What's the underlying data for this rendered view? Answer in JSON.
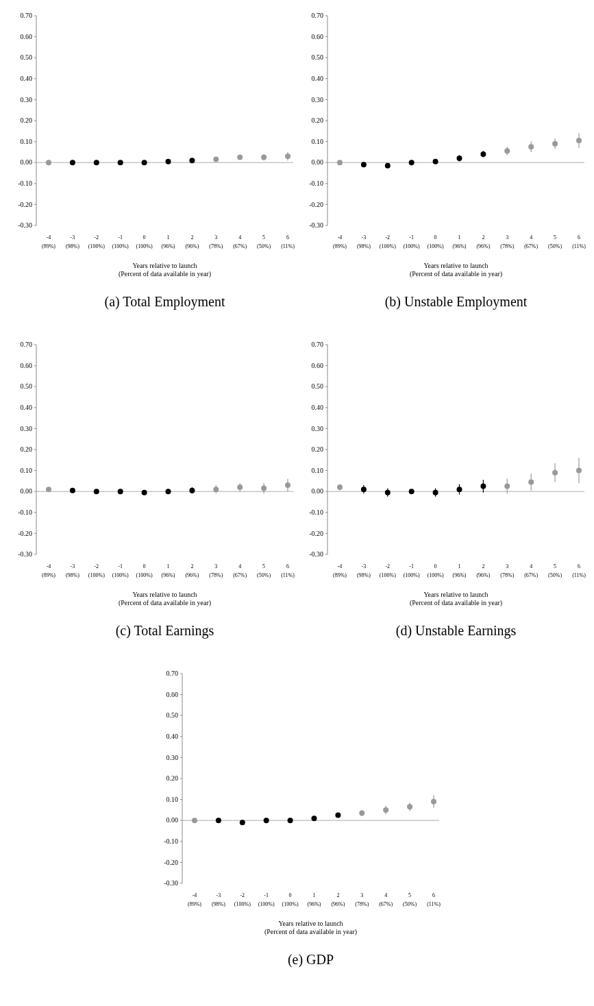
{
  "chart_data": [
    {
      "type": "scatter",
      "title": "(a) Total Employment",
      "xlabel": "Years relative to launch\n(Percent of data available in year)",
      "categories": [
        "-4 (89%)",
        "-3 (98%)",
        "-2 (100%)",
        "-1 (100%)",
        "0 (100%)",
        "1 (96%)",
        "2 (96%)",
        "3 (78%)",
        "4 (67%)",
        "5 (50%)",
        "6 (11%)"
      ],
      "values": [
        0.0,
        0.0,
        0.0,
        0.0,
        0.0,
        0.005,
        0.01,
        0.015,
        0.025,
        0.025,
        0.03
      ],
      "errors": [
        null,
        null,
        null,
        null,
        null,
        null,
        0.005,
        0.01,
        0.01,
        0.015,
        0.02
      ],
      "colors": [
        "#999999",
        "#000000",
        "#000000",
        "#000000",
        "#000000",
        "#000000",
        "#000000",
        "#999999",
        "#999999",
        "#999999",
        "#999999"
      ],
      "marker": "circle",
      "ylim": [
        -0.3,
        0.7
      ],
      "yticks": [
        {
          "value": 0.7,
          "label": "0.70"
        },
        {
          "value": 0.6,
          "label": "0.60"
        },
        {
          "value": 0.5,
          "label": "0.50"
        },
        {
          "value": 0.4,
          "label": "0.40"
        },
        {
          "value": 0.3,
          "label": "0.30"
        },
        {
          "value": 0.2,
          "label": "0.20"
        },
        {
          "value": 0.1,
          "label": "0.10"
        },
        {
          "value": 0,
          "label": "0.00"
        },
        {
          "value": -0.1,
          "label": "-0.10"
        },
        {
          "value": -0.2,
          "label": "-0.20"
        },
        {
          "value": -0.3,
          "label": "-0.30"
        }
      ],
      "ref_lines": [
        {
          "axis": "y",
          "value": 0,
          "color": "#aaaaaa"
        }
      ]
    },
    {
      "type": "scatter",
      "title": "(b) Unstable Employment",
      "xlabel": "Years relative to launch\n(Percent of data available in year)",
      "categories": [
        "-4 (89%)",
        "-3 (98%)",
        "-2 (100%)",
        "-1 (100%)",
        "0 (100%)",
        "1 (96%)",
        "2 (96%)",
        "3 (78%)",
        "4 (67%)",
        "5 (50%)",
        "6 (11%)"
      ],
      "values": [
        0.0,
        -0.01,
        -0.015,
        0.0,
        0.005,
        0.02,
        0.04,
        0.055,
        0.075,
        0.09,
        0.105
      ],
      "errors": [
        null,
        null,
        null,
        null,
        0.01,
        0.015,
        0.015,
        0.02,
        0.025,
        0.025,
        0.035
      ],
      "colors": [
        "#999999",
        "#000000",
        "#000000",
        "#000000",
        "#000000",
        "#000000",
        "#000000",
        "#999999",
        "#999999",
        "#999999",
        "#999999"
      ],
      "marker": "circle",
      "ylim": [
        -0.3,
        0.7
      ],
      "yticks": [
        {
          "value": 0.7,
          "label": "0.70"
        },
        {
          "value": 0.6,
          "label": "0.60"
        },
        {
          "value": 0.5,
          "label": "0.50"
        },
        {
          "value": 0.4,
          "label": "0.40"
        },
        {
          "value": 0.3,
          "label": "0.30"
        },
        {
          "value": 0.2,
          "label": "0.20"
        },
        {
          "value": 0.1,
          "label": "0.10"
        },
        {
          "value": 0,
          "label": "0.00"
        },
        {
          "value": -0.1,
          "label": "-0.10"
        },
        {
          "value": -0.2,
          "label": "-0.20"
        },
        {
          "value": -0.3,
          "label": "-0.30"
        }
      ],
      "ref_lines": [
        {
          "axis": "y",
          "value": 0,
          "color": "#aaaaaa"
        }
      ]
    },
    {
      "type": "scatter",
      "title": "(c) Total Earnings",
      "xlabel": "Years relative to launch\n(Percent of data available in year)",
      "categories": [
        "-4 (89%)",
        "-3 (98%)",
        "-2 (100%)",
        "-1 (100%)",
        "0 (100%)",
        "1 (96%)",
        "2 (96%)",
        "3 (78%)",
        "4 (67%)",
        "5 (50%)",
        "6 (11%)"
      ],
      "values": [
        0.01,
        0.005,
        0.0,
        0.0,
        -0.005,
        0.0,
        0.005,
        0.01,
        0.02,
        0.015,
        0.03
      ],
      "errors": [
        null,
        null,
        null,
        null,
        null,
        0.01,
        0.015,
        0.02,
        0.02,
        0.025,
        0.03
      ],
      "colors": [
        "#999999",
        "#000000",
        "#000000",
        "#000000",
        "#000000",
        "#000000",
        "#000000",
        "#999999",
        "#999999",
        "#999999",
        "#999999"
      ],
      "marker": "circle",
      "ylim": [
        -0.3,
        0.7
      ],
      "yticks": [
        {
          "value": 0.7,
          "label": "0.70"
        },
        {
          "value": 0.6,
          "label": "0.60"
        },
        {
          "value": 0.5,
          "label": "0.50"
        },
        {
          "value": 0.4,
          "label": "0.40"
        },
        {
          "value": 0.3,
          "label": "0.30"
        },
        {
          "value": 0.2,
          "label": "0.20"
        },
        {
          "value": 0.1,
          "label": "0.10"
        },
        {
          "value": 0,
          "label": "0.00"
        },
        {
          "value": -0.1,
          "label": "-0.10"
        },
        {
          "value": -0.2,
          "label": "-0.20"
        },
        {
          "value": -0.3,
          "label": "-0.30"
        }
      ],
      "ref_lines": [
        {
          "axis": "y",
          "value": 0,
          "color": "#aaaaaa"
        }
      ]
    },
    {
      "type": "scatter",
      "title": "(d) Unstable Earnings",
      "xlabel": "Years relative to launch\n(Percent of data available in year)",
      "categories": [
        "-4 (89%)",
        "-3 (98%)",
        "-2 (100%)",
        "-1 (100%)",
        "0 (100%)",
        "1 (96%)",
        "2 (96%)",
        "3 (78%)",
        "4 (67%)",
        "5 (50%)",
        "6 (11%)"
      ],
      "values": [
        0.02,
        0.01,
        -0.005,
        0.0,
        -0.005,
        0.01,
        0.025,
        0.025,
        0.045,
        0.09,
        0.1
      ],
      "errors": [
        0.015,
        0.02,
        0.02,
        null,
        0.02,
        0.025,
        0.03,
        0.035,
        0.04,
        0.045,
        0.06
      ],
      "colors": [
        "#999999",
        "#000000",
        "#000000",
        "#000000",
        "#000000",
        "#000000",
        "#000000",
        "#999999",
        "#999999",
        "#999999",
        "#999999"
      ],
      "marker": "circle",
      "ylim": [
        -0.3,
        0.7
      ],
      "yticks": [
        {
          "value": 0.7,
          "label": "0.70"
        },
        {
          "value": 0.6,
          "label": "0.60"
        },
        {
          "value": 0.5,
          "label": "0.50"
        },
        {
          "value": 0.4,
          "label": "0.40"
        },
        {
          "value": 0.3,
          "label": "0.30"
        },
        {
          "value": 0.2,
          "label": "0.20"
        },
        {
          "value": 0.1,
          "label": "0.10"
        },
        {
          "value": 0,
          "label": "0.00"
        },
        {
          "value": -0.1,
          "label": "-0.10"
        },
        {
          "value": -0.2,
          "label": "-0.20"
        },
        {
          "value": -0.3,
          "label": "-0.30"
        }
      ],
      "ref_lines": [
        {
          "axis": "y",
          "value": 0,
          "color": "#aaaaaa"
        }
      ]
    },
    {
      "type": "scatter",
      "title": "(e) GDP",
      "xlabel": "Years relative to launch\n(Percent of data available in year)",
      "categories": [
        "-4 (89%)",
        "-3 (98%)",
        "-2 (100%)",
        "-1 (100%)",
        "0 (100%)",
        "1 (96%)",
        "2 (96%)",
        "3 (78%)",
        "4 (67%)",
        "5 (50%)",
        "6 (11%)"
      ],
      "values": [
        0.0,
        0.0,
        -0.01,
        0.0,
        0.0,
        0.01,
        0.025,
        0.035,
        0.05,
        0.065,
        0.09
      ],
      "errors": [
        null,
        null,
        null,
        null,
        null,
        0.01,
        0.01,
        0.015,
        0.02,
        0.02,
        0.03
      ],
      "colors": [
        "#999999",
        "#000000",
        "#000000",
        "#000000",
        "#000000",
        "#000000",
        "#000000",
        "#999999",
        "#999999",
        "#999999",
        "#999999"
      ],
      "marker": "circle",
      "ylim": [
        -0.3,
        0.7
      ],
      "yticks": [
        {
          "value": 0.7,
          "label": "0.70"
        },
        {
          "value": 0.6,
          "label": "0.60"
        },
        {
          "value": 0.5,
          "label": "0.50"
        },
        {
          "value": 0.4,
          "label": "0.40"
        },
        {
          "value": 0.3,
          "label": "0.30"
        },
        {
          "value": 0.2,
          "label": "0.20"
        },
        {
          "value": 0.1,
          "label": "0.10"
        },
        {
          "value": 0,
          "label": "0.00"
        },
        {
          "value": -0.1,
          "label": "-0.10"
        },
        {
          "value": -0.2,
          "label": "-0.20"
        },
        {
          "value": -0.3,
          "label": "-0.30"
        }
      ],
      "ref_lines": [
        {
          "axis": "y",
          "value": 0,
          "color": "#aaaaaa"
        }
      ]
    }
  ]
}
